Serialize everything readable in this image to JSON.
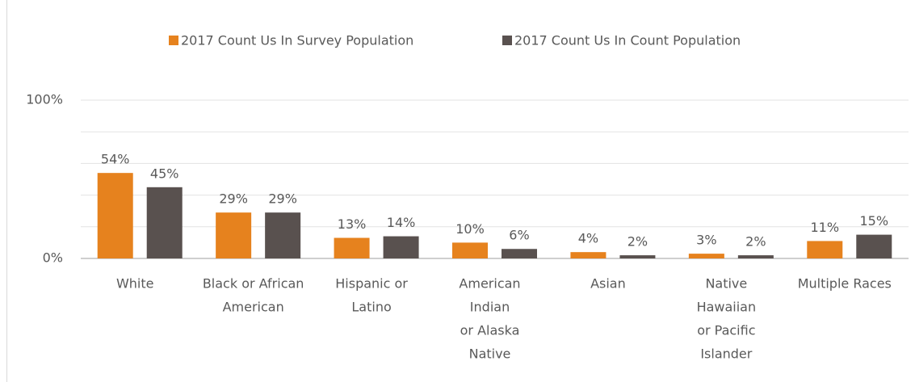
{
  "chart_data": {
    "type": "bar",
    "categories": [
      [
        "White"
      ],
      [
        "Black or African",
        "American"
      ],
      [
        "Hispanic or",
        "Latino"
      ],
      [
        "American",
        "Indian",
        "or Alaska",
        "Native"
      ],
      [
        "Asian"
      ],
      [
        "Native",
        "Hawaiian",
        "or Pacific",
        "Islander"
      ],
      [
        "Multiple Races"
      ]
    ],
    "series": [
      {
        "name": "2017 Count Us In Survey Population",
        "color": "#e6821e",
        "values": [
          54,
          29,
          13,
          10,
          4,
          3,
          11
        ],
        "value_labels": [
          "54%",
          "29%",
          "13%",
          "10%",
          "4%",
          "3%",
          "11%"
        ]
      },
      {
        "name": "2017 Count Us In Count Population",
        "color": "#59514f",
        "values": [
          45,
          29,
          14,
          6,
          2,
          2,
          15
        ],
        "value_labels": [
          "45%",
          "29%",
          "14%",
          "6%",
          "2%",
          "2%",
          "15%"
        ]
      }
    ],
    "ylim": [
      0,
      100
    ],
    "yticks": [
      {
        "value": 0,
        "label": "0%"
      },
      {
        "value": 20,
        "label": null
      },
      {
        "value": 40,
        "label": null
      },
      {
        "value": 60,
        "label": null
      },
      {
        "value": 80,
        "label": null
      },
      {
        "value": 100,
        "label": "100%"
      }
    ],
    "grid": true,
    "legend": "top"
  }
}
